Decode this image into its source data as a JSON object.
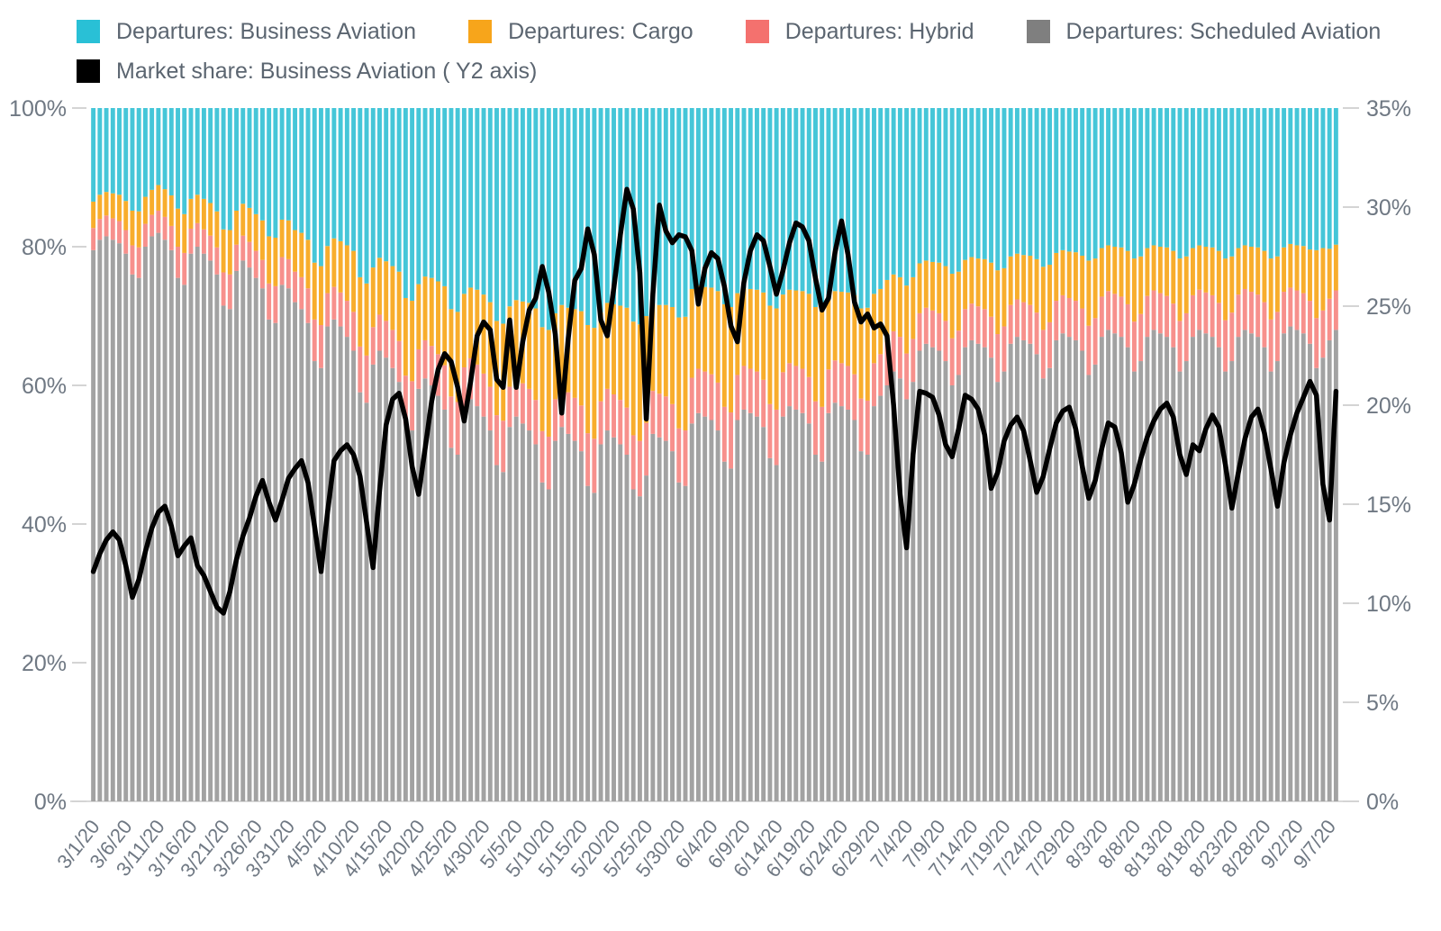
{
  "colors": {
    "background": "#ffffff",
    "legend_text": "#5b6570",
    "axis_text": "#6f7883",
    "tick_dash": "#d4d4d4",
    "baseline": "#d9d9d9"
  },
  "legend": {
    "items": [
      {
        "id": "business-aviation",
        "label": "Departures: Business Aviation",
        "color": "#29c0d6"
      },
      {
        "id": "cargo",
        "label": "Departures: Cargo",
        "color": "#f7a51b"
      },
      {
        "id": "hybrid",
        "label": "Departures: Hybrid",
        "color": "#f4716e"
      },
      {
        "id": "scheduled-aviation",
        "label": "Departures: Scheduled Aviation",
        "color": "#7f7f7f"
      },
      {
        "id": "market-share",
        "label": "Market share: Business Aviation ( Y2 axis)",
        "color": "#000000"
      }
    ]
  },
  "chart_data": {
    "type": "bar",
    "subtype": "100%-stacked-bars-with-line-overlay",
    "n_points": 192,
    "x_start_date": "3/1/20",
    "x_tick_every": 5,
    "x_tick_labels": [
      "3/1/20",
      "3/6/20",
      "3/11/20",
      "3/16/20",
      "3/21/20",
      "3/26/20",
      "3/31/20",
      "4/5/20",
      "4/10/20",
      "4/15/20",
      "4/20/20",
      "4/25/20",
      "4/30/20",
      "5/5/20",
      "5/10/20",
      "5/15/20",
      "5/20/20",
      "5/25/20",
      "5/30/20",
      "6/4/20",
      "6/9/20",
      "6/14/20",
      "6/19/20",
      "6/24/20",
      "6/29/20",
      "7/4/20",
      "7/9/20",
      "7/14/20",
      "7/19/20",
      "7/24/20",
      "7/29/20",
      "8/3/20",
      "8/8/20",
      "8/13/20",
      "8/18/20",
      "8/23/20",
      "8/28/20",
      "9/2/20",
      "9/7/20"
    ],
    "y_left": {
      "min": 0,
      "max": 100,
      "tick_labels": [
        "0%",
        "20%",
        "40%",
        "60%",
        "80%",
        "100%"
      ],
      "tick_values": [
        0,
        20,
        40,
        60,
        80,
        100
      ]
    },
    "y_right": {
      "min": 0,
      "max": 35,
      "tick_labels": [
        "0%",
        "5%",
        "10%",
        "15%",
        "20%",
        "25%",
        "30%",
        "35%"
      ],
      "tick_values": [
        0,
        5,
        10,
        15,
        20,
        25,
        30,
        35
      ]
    },
    "legend_position": "top-left",
    "grid": false,
    "series": [
      {
        "name": "Departures: Scheduled Aviation",
        "type": "bar",
        "axis": "y1",
        "color": "#a2a2a2",
        "values": [
          79.5,
          81.0,
          81.5,
          81.0,
          80.5,
          79.0,
          76.0,
          75.5,
          80.0,
          81.5,
          82.0,
          81.0,
          79.5,
          75.5,
          74.5,
          79.0,
          80.0,
          79.0,
          78.0,
          76.0,
          71.5,
          71.0,
          76.5,
          78.0,
          77.0,
          75.5,
          74.0,
          69.5,
          69.0,
          74.5,
          74.0,
          72.0,
          71.0,
          69.0,
          63.5,
          62.5,
          68.5,
          69.5,
          68.5,
          67.0,
          65.0,
          59.0,
          57.5,
          63.0,
          65.0,
          64.0,
          62.5,
          60.5,
          54.5,
          53.5,
          59.5,
          61.0,
          60.0,
          58.5,
          56.5,
          51.0,
          50.0,
          56.5,
          58.0,
          57.0,
          55.5,
          53.5,
          48.5,
          47.5,
          54.0,
          55.5,
          54.5,
          53.5,
          51.5,
          46.0,
          45.0,
          52.0,
          54.0,
          53.0,
          52.0,
          50.5,
          45.5,
          44.5,
          51.5,
          53.5,
          52.5,
          51.5,
          50.0,
          45.0,
          44.0,
          47.0,
          53.0,
          52.5,
          52.0,
          50.5,
          46.0,
          45.5,
          54.5,
          56.0,
          55.5,
          55.0,
          53.5,
          49.0,
          48.0,
          55.0,
          56.5,
          56.0,
          55.5,
          54.0,
          49.5,
          48.5,
          55.5,
          57.0,
          56.5,
          56.0,
          54.5,
          50.0,
          49.0,
          56.0,
          57.5,
          57.0,
          56.5,
          55.0,
          50.5,
          50.0,
          57.0,
          58.5,
          60.0,
          62.0,
          61.0,
          58.0,
          60.5,
          65.0,
          66.0,
          65.5,
          65.0,
          63.5,
          60.0,
          61.5,
          65.5,
          66.5,
          66.0,
          65.5,
          64.0,
          60.5,
          62.0,
          66.0,
          67.0,
          66.5,
          66.0,
          64.5,
          61.0,
          62.5,
          66.5,
          67.5,
          67.0,
          66.5,
          65.0,
          61.5,
          63.0,
          67.0,
          68.0,
          67.5,
          67.0,
          65.5,
          62.0,
          63.5,
          67.0,
          68.0,
          67.5,
          67.0,
          65.5,
          62.0,
          63.5,
          67.0,
          68.0,
          67.5,
          67.0,
          65.5,
          62.0,
          63.5,
          67.0,
          68.0,
          67.5,
          67.0,
          65.5,
          62.0,
          63.5,
          67.5,
          68.5,
          68.0,
          67.5,
          66.0,
          62.5,
          64.0,
          66.5,
          68.0
        ]
      },
      {
        "name": "Departures: Hybrid",
        "type": "bar",
        "axis": "y1",
        "color": "#f7908c",
        "values": [
          3.2,
          3.0,
          3.0,
          3.1,
          3.2,
          3.4,
          4.2,
          4.4,
          3.3,
          3.1,
          3.2,
          3.3,
          3.5,
          4.5,
          4.6,
          3.6,
          3.4,
          3.5,
          3.6,
          3.9,
          4.8,
          5.0,
          3.8,
          3.6,
          3.7,
          3.9,
          4.1,
          5.2,
          5.3,
          4.0,
          4.2,
          4.4,
          4.6,
          5.0,
          6.0,
          6.2,
          4.8,
          4.7,
          4.9,
          5.2,
          5.6,
          6.6,
          6.8,
          5.4,
          5.2,
          5.3,
          5.5,
          5.9,
          6.9,
          7.1,
          5.7,
          5.5,
          5.7,
          6.0,
          6.4,
          7.4,
          7.6,
          6.1,
          5.9,
          6.0,
          6.2,
          6.3,
          7.2,
          7.4,
          5.8,
          5.6,
          5.8,
          6.0,
          6.4,
          7.4,
          7.6,
          6.0,
          5.8,
          6.0,
          6.2,
          6.6,
          7.6,
          7.8,
          6.2,
          6.0,
          6.2,
          6.4,
          6.8,
          7.8,
          8.0,
          7.6,
          6.2,
          6.3,
          6.4,
          6.8,
          7.8,
          8.0,
          6.6,
          6.4,
          6.5,
          6.6,
          6.9,
          7.9,
          8.1,
          6.5,
          6.3,
          6.4,
          6.5,
          6.8,
          7.8,
          8.0,
          6.4,
          6.2,
          6.3,
          6.4,
          6.7,
          7.7,
          7.9,
          6.3,
          6.1,
          6.2,
          6.3,
          6.6,
          7.6,
          7.8,
          6.2,
          6.0,
          6.2,
          5.8,
          6.0,
          6.6,
          6.2,
          5.4,
          5.2,
          5.3,
          5.4,
          5.8,
          6.8,
          6.4,
          5.5,
          5.3,
          5.4,
          5.5,
          5.9,
          6.9,
          6.5,
          5.6,
          5.4,
          5.5,
          5.6,
          6.0,
          7.0,
          6.6,
          5.7,
          5.5,
          5.6,
          5.7,
          6.1,
          7.1,
          6.7,
          5.8,
          5.6,
          5.7,
          5.8,
          6.2,
          7.2,
          6.8,
          5.9,
          5.7,
          5.8,
          5.9,
          6.3,
          7.3,
          6.9,
          6.0,
          5.8,
          5.9,
          6.0,
          6.4,
          7.4,
          7.0,
          6.1,
          5.9,
          6.0,
          6.1,
          6.5,
          7.5,
          7.1,
          6.0,
          5.6,
          5.7,
          5.8,
          6.2,
          7.2,
          6.8,
          6.0,
          5.7
        ]
      },
      {
        "name": "Departures: Cargo",
        "type": "bar",
        "axis": "y1",
        "color": "#f8ad2c",
        "values": [
          3.8,
          3.5,
          3.4,
          3.6,
          3.8,
          4.2,
          5.0,
          5.2,
          3.9,
          3.6,
          3.7,
          4.0,
          4.4,
          5.5,
          5.6,
          4.3,
          4.1,
          4.4,
          4.7,
          5.2,
          6.2,
          6.4,
          4.9,
          4.6,
          4.9,
          5.3,
          5.7,
          6.8,
          7.0,
          5.4,
          5.6,
          6.0,
          6.4,
          7.0,
          8.2,
          8.5,
          6.8,
          7.0,
          7.4,
          8.0,
          8.8,
          10.0,
          10.4,
          8.6,
          8.2,
          8.6,
          9.2,
          10.0,
          11.2,
          11.6,
          9.4,
          9.2,
          9.8,
          10.5,
          11.4,
          12.6,
          13.0,
          10.6,
          10.2,
          10.8,
          11.4,
          12.2,
          13.6,
          14.0,
          11.6,
          11.2,
          11.8,
          12.4,
          13.2,
          15.0,
          15.4,
          12.4,
          11.8,
          12.2,
          12.8,
          13.6,
          15.6,
          16.0,
          12.8,
          12.4,
          13.0,
          13.6,
          14.4,
          16.4,
          16.8,
          15.4,
          12.6,
          12.8,
          13.2,
          14.0,
          16.0,
          16.4,
          12.8,
          12.0,
          12.2,
          12.5,
          13.2,
          14.8,
          15.2,
          11.8,
          11.2,
          11.5,
          11.8,
          12.6,
          14.2,
          14.6,
          11.2,
          10.6,
          10.9,
          11.2,
          12.0,
          13.6,
          14.0,
          10.6,
          10.0,
          10.3,
          10.6,
          11.4,
          13.0,
          13.4,
          10.0,
          9.4,
          9.0,
          8.2,
          8.6,
          9.8,
          8.9,
          7.2,
          6.8,
          7.0,
          7.3,
          7.9,
          9.3,
          8.5,
          7.1,
          6.7,
          6.9,
          7.2,
          7.8,
          9.2,
          8.4,
          7.0,
          6.6,
          6.8,
          7.1,
          7.7,
          9.1,
          8.3,
          6.9,
          6.5,
          6.7,
          7.0,
          7.6,
          9.4,
          8.6,
          7.0,
          6.6,
          6.8,
          7.1,
          7.7,
          9.1,
          8.3,
          6.9,
          6.5,
          6.7,
          7.0,
          7.6,
          9.0,
          8.2,
          6.8,
          6.4,
          6.6,
          6.9,
          7.5,
          8.9,
          8.1,
          6.7,
          6.3,
          6.5,
          6.8,
          7.4,
          8.8,
          8.0,
          6.4,
          6.3,
          6.5,
          6.8,
          7.4,
          9.8,
          9.0,
          7.2,
          6.6
        ]
      },
      {
        "name": "Departures: Business Aviation",
        "type": "bar",
        "axis": "y1",
        "color": "#45c6d8",
        "values": [
          13.5,
          12.5,
          12.1,
          12.3,
          12.5,
          13.4,
          14.8,
          14.9,
          12.8,
          11.8,
          11.1,
          11.7,
          12.6,
          14.5,
          15.3,
          13.1,
          12.5,
          13.1,
          13.7,
          14.9,
          17.5,
          17.6,
          14.8,
          13.8,
          14.4,
          15.3,
          16.2,
          18.5,
          18.7,
          16.1,
          16.2,
          17.6,
          18.0,
          19.0,
          22.3,
          22.8,
          19.9,
          18.8,
          19.2,
          19.8,
          20.6,
          24.4,
          25.3,
          23.0,
          21.6,
          22.1,
          22.8,
          23.6,
          27.4,
          27.8,
          25.4,
          24.3,
          24.5,
          25.0,
          25.7,
          29.0,
          29.4,
          26.8,
          25.9,
          26.2,
          26.9,
          28.0,
          30.7,
          31.1,
          28.6,
          27.7,
          27.9,
          28.1,
          28.9,
          31.6,
          32.0,
          29.6,
          28.4,
          28.8,
          29.0,
          29.3,
          31.3,
          31.7,
          29.5,
          28.1,
          28.3,
          28.5,
          28.8,
          30.8,
          31.2,
          30.0,
          28.2,
          28.4,
          28.4,
          28.7,
          30.2,
          30.1,
          26.1,
          25.6,
          25.8,
          25.9,
          26.4,
          28.3,
          28.7,
          26.7,
          26.0,
          26.1,
          26.2,
          26.6,
          28.5,
          28.9,
          26.9,
          26.2,
          26.3,
          26.4,
          26.8,
          28.7,
          29.1,
          27.1,
          26.4,
          26.5,
          26.6,
          27.0,
          28.9,
          28.8,
          26.8,
          26.1,
          24.8,
          24.0,
          24.4,
          25.6,
          24.4,
          22.4,
          22.0,
          22.2,
          22.3,
          22.8,
          23.9,
          23.6,
          21.9,
          21.5,
          21.7,
          21.8,
          22.3,
          23.4,
          23.1,
          21.4,
          21.0,
          21.2,
          21.3,
          21.8,
          22.9,
          22.6,
          20.9,
          20.5,
          20.7,
          20.8,
          21.3,
          22.0,
          21.7,
          20.2,
          19.8,
          20.0,
          20.1,
          20.6,
          21.7,
          21.4,
          20.2,
          19.8,
          20.0,
          20.1,
          20.6,
          21.7,
          21.4,
          20.2,
          19.8,
          20.0,
          20.1,
          20.6,
          21.7,
          21.4,
          20.2,
          19.8,
          20.0,
          20.1,
          20.6,
          21.7,
          21.4,
          20.1,
          19.6,
          19.8,
          19.9,
          20.4,
          20.5,
          20.2,
          20.3,
          19.7
        ]
      },
      {
        "name": "Market share: Business Aviation ( Y2 axis)",
        "type": "line",
        "axis": "y2",
        "color": "#000000",
        "values": [
          11.6,
          12.5,
          13.2,
          13.6,
          13.2,
          11.9,
          10.3,
          11.2,
          12.6,
          13.8,
          14.6,
          14.9,
          13.9,
          12.4,
          12.9,
          13.3,
          11.9,
          11.4,
          10.6,
          9.8,
          9.5,
          10.6,
          12.2,
          13.4,
          14.3,
          15.4,
          16.2,
          15.1,
          14.2,
          15.2,
          16.3,
          16.8,
          17.2,
          16.1,
          13.9,
          11.6,
          14.6,
          17.2,
          17.7,
          18.0,
          17.5,
          16.4,
          14.1,
          11.8,
          15.7,
          19.0,
          20.3,
          20.6,
          19.3,
          16.9,
          15.5,
          17.8,
          20.2,
          21.8,
          22.6,
          22.2,
          20.9,
          19.2,
          21.2,
          23.5,
          24.2,
          23.8,
          21.3,
          20.9,
          24.3,
          20.9,
          23.2,
          24.8,
          25.4,
          27.0,
          25.7,
          23.6,
          19.6,
          23.4,
          26.3,
          26.9,
          28.9,
          27.6,
          24.3,
          23.5,
          25.9,
          28.6,
          30.9,
          29.9,
          26.7,
          19.3,
          25.6,
          30.1,
          28.8,
          28.2,
          28.6,
          28.5,
          27.8,
          25.1,
          26.9,
          27.7,
          27.4,
          26.0,
          24.0,
          23.2,
          26.2,
          27.8,
          28.6,
          28.3,
          27.0,
          25.6,
          26.8,
          28.2,
          29.2,
          29.0,
          28.3,
          26.4,
          24.8,
          25.4,
          27.7,
          29.3,
          27.6,
          25.2,
          24.2,
          24.6,
          23.9,
          24.1,
          23.5,
          20.0,
          15.5,
          12.8,
          17.5,
          20.7,
          20.6,
          20.4,
          19.5,
          18.0,
          17.4,
          18.8,
          20.5,
          20.3,
          19.8,
          18.5,
          15.8,
          16.6,
          18.2,
          19.0,
          19.4,
          18.7,
          17.2,
          15.6,
          16.4,
          17.8,
          19.1,
          19.7,
          19.9,
          18.8,
          16.9,
          15.3,
          16.2,
          17.8,
          19.1,
          18.9,
          17.6,
          15.1,
          16.0,
          17.3,
          18.4,
          19.2,
          19.8,
          20.1,
          19.4,
          17.5,
          16.5,
          18.0,
          17.7,
          18.8,
          19.5,
          18.9,
          17.0,
          14.8,
          16.6,
          18.3,
          19.4,
          19.8,
          18.6,
          16.8,
          14.9,
          17.1,
          18.5,
          19.6,
          20.4,
          21.2,
          20.5,
          16.0,
          14.2,
          20.7
        ]
      }
    ]
  }
}
